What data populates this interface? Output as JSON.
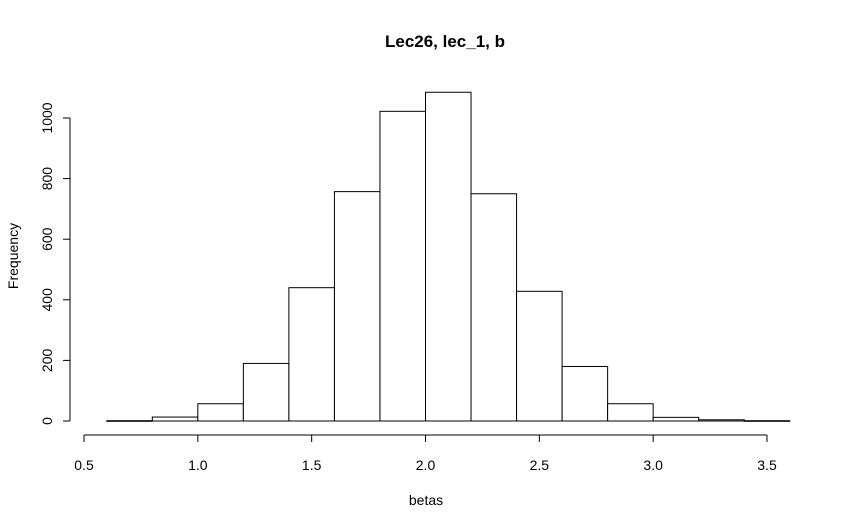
{
  "chart_data": {
    "type": "bar",
    "title": "Lec26, lec_1, b",
    "xlabel": "betas",
    "ylabel": "Frequency",
    "bin_edges": [
      0.6,
      0.8,
      1.0,
      1.2,
      1.4,
      1.6,
      1.8,
      2.0,
      2.2,
      2.4,
      2.6,
      2.8,
      3.0,
      3.2,
      3.4,
      3.6
    ],
    "values": [
      1,
      13,
      57,
      190,
      440,
      757,
      1022,
      1085,
      750,
      428,
      180,
      57,
      12,
      4,
      1
    ],
    "xlim": [
      0.5,
      3.5
    ],
    "ylim": [
      0,
      1085
    ],
    "x_ticks": [
      0.5,
      1.0,
      1.5,
      2.0,
      2.5,
      3.0,
      3.5
    ],
    "x_tick_labels": [
      "0.5",
      "1.0",
      "1.5",
      "2.0",
      "2.5",
      "3.0",
      "3.5"
    ],
    "y_ticks": [
      0,
      200,
      400,
      600,
      800,
      1000
    ],
    "y_tick_labels": [
      "0",
      "200",
      "400",
      "600",
      "800",
      "1000"
    ],
    "grid": false,
    "legend": "none",
    "colors": {
      "bar_fill": "#ffffff",
      "bar_stroke": "#000000",
      "axis": "#000000"
    }
  }
}
